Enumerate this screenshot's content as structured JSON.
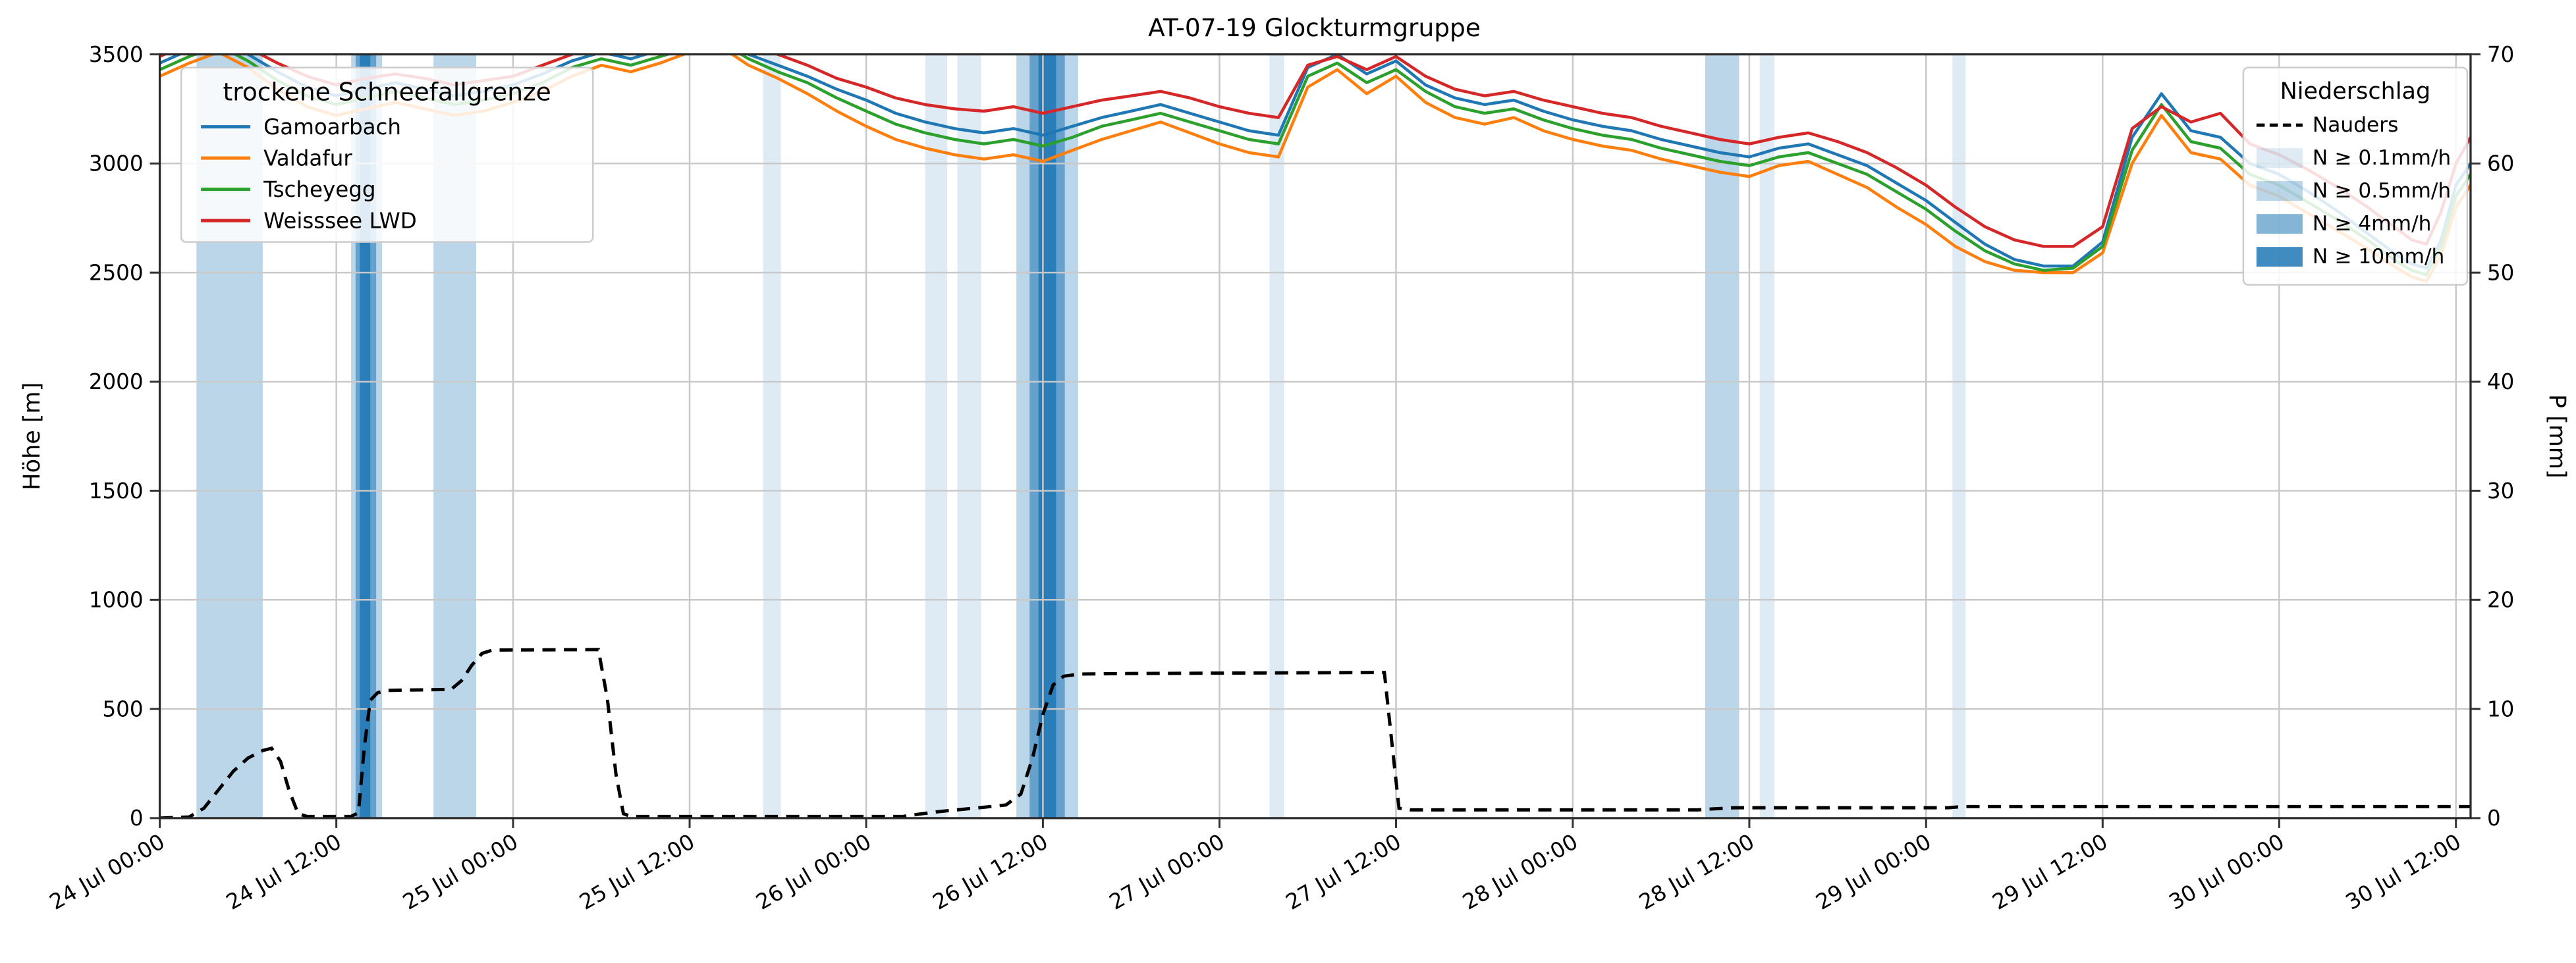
{
  "title": "AT-07-19 Glockturmgruppe",
  "axes": {
    "left": {
      "label": "Höhe [m]",
      "tick_values": [
        0,
        500,
        1000,
        1500,
        2000,
        2500,
        3000,
        3500
      ],
      "range": [
        0,
        3500
      ]
    },
    "right": {
      "label": "P [mm]",
      "tick_values": [
        0,
        10,
        20,
        30,
        40,
        50,
        60,
        70
      ],
      "range": [
        0,
        70
      ]
    },
    "x": {
      "tick_hours": [
        0,
        12,
        24,
        36,
        48,
        60,
        72,
        84,
        96,
        108,
        120,
        132,
        144,
        156
      ],
      "tick_labels": [
        "24 Jul 00:00",
        "24 Jul 12:00",
        "25 Jul 00:00",
        "25 Jul 12:00",
        "26 Jul 00:00",
        "26 Jul 12:00",
        "27 Jul 00:00",
        "27 Jul 12:00",
        "28 Jul 00:00",
        "28 Jul 12:00",
        "29 Jul 00:00",
        "29 Jul 12:00",
        "30 Jul 00:00",
        "30 Jul 12:00"
      ],
      "range_hours": [
        0,
        157
      ]
    }
  },
  "legend_lines": {
    "title": "trockene Schneefallgrenze",
    "entries": [
      {
        "label": "Gamoarbach",
        "color": "#1f77b4"
      },
      {
        "label": "Valdafur",
        "color": "#ff7f0e"
      },
      {
        "label": "Tscheyegg",
        "color": "#2ca02c"
      },
      {
        "label": "Weisssee LWD",
        "color": "#d62728"
      }
    ]
  },
  "legend_precip": {
    "title": "Niederschlag",
    "entries": [
      {
        "label": "Nauders",
        "swatch": "dashed-line",
        "color": "#000000"
      },
      {
        "label": "N ≥ 0.1mm/h",
        "swatch": "patch",
        "class": "0.1"
      },
      {
        "label": "N ≥ 0.5mm/h",
        "swatch": "patch",
        "class": "0.5"
      },
      {
        "label": "N ≥ 4mm/h",
        "swatch": "patch",
        "class": "4"
      },
      {
        "label": "N ≥ 10mm/h",
        "swatch": "patch",
        "class": "10"
      }
    ]
  },
  "chart_data": {
    "type": "line",
    "x_unit": "hours since 24 Jul 00:00",
    "x_hours": [
      0,
      2,
      4,
      6,
      8,
      10,
      12,
      14,
      16,
      18,
      20,
      22,
      24,
      26,
      28,
      30,
      32,
      34,
      36,
      38,
      40,
      42,
      44,
      46,
      48,
      50,
      52,
      54,
      56,
      58,
      60,
      62,
      64,
      66,
      68,
      70,
      72,
      74,
      76,
      78,
      80,
      82,
      84,
      86,
      88,
      90,
      92,
      94,
      96,
      98,
      100,
      102,
      104,
      106,
      108,
      110,
      112,
      114,
      116,
      118,
      120,
      122,
      124,
      126,
      128,
      130,
      132,
      134,
      136,
      138,
      140,
      142,
      144,
      146,
      148,
      150,
      152,
      153,
      154,
      155,
      156,
      157
    ],
    "series": [
      {
        "name": "Gamoarbach",
        "axis": "left",
        "color": "#1f77b4",
        "values": [
          3460,
          3520,
          3560,
          3500,
          3420,
          3350,
          3310,
          3340,
          3370,
          3340,
          3310,
          3330,
          3360,
          3410,
          3470,
          3510,
          3480,
          3520,
          3560,
          3580,
          3500,
          3450,
          3400,
          3340,
          3290,
          3230,
          3190,
          3160,
          3140,
          3160,
          3130,
          3170,
          3210,
          3240,
          3270,
          3230,
          3190,
          3150,
          3130,
          3440,
          3500,
          3410,
          3470,
          3360,
          3300,
          3270,
          3290,
          3240,
          3200,
          3170,
          3150,
          3110,
          3080,
          3050,
          3030,
          3070,
          3090,
          3040,
          2990,
          2910,
          2830,
          2730,
          2630,
          2560,
          2530,
          2530,
          2640,
          3120,
          3320,
          3150,
          3120,
          3000,
          2950,
          2870,
          2780,
          2680,
          2580,
          2540,
          2520,
          2650,
          2900,
          3000
        ]
      },
      {
        "name": "Valdafur",
        "axis": "left",
        "color": "#ff7f0e",
        "values": [
          3400,
          3460,
          3510,
          3440,
          3340,
          3260,
          3220,
          3250,
          3280,
          3250,
          3220,
          3240,
          3280,
          3330,
          3400,
          3450,
          3420,
          3460,
          3510,
          3540,
          3450,
          3390,
          3320,
          3240,
          3170,
          3110,
          3070,
          3040,
          3020,
          3040,
          3010,
          3060,
          3110,
          3150,
          3190,
          3140,
          3090,
          3050,
          3030,
          3350,
          3430,
          3320,
          3400,
          3280,
          3210,
          3180,
          3210,
          3150,
          3110,
          3080,
          3060,
          3020,
          2990,
          2960,
          2940,
          2990,
          3010,
          2950,
          2890,
          2800,
          2720,
          2620,
          2550,
          2510,
          2500,
          2500,
          2590,
          3000,
          3220,
          3050,
          3020,
          2900,
          2850,
          2770,
          2690,
          2610,
          2520,
          2480,
          2460,
          2580,
          2800,
          2900
        ]
      },
      {
        "name": "Tscheyegg",
        "axis": "left",
        "color": "#2ca02c",
        "values": [
          3430,
          3490,
          3540,
          3470,
          3380,
          3310,
          3270,
          3300,
          3330,
          3300,
          3270,
          3290,
          3320,
          3370,
          3440,
          3480,
          3450,
          3490,
          3530,
          3560,
          3480,
          3420,
          3370,
          3300,
          3240,
          3180,
          3140,
          3110,
          3090,
          3110,
          3080,
          3120,
          3170,
          3200,
          3230,
          3190,
          3150,
          3110,
          3090,
          3400,
          3460,
          3370,
          3430,
          3330,
          3260,
          3230,
          3250,
          3200,
          3160,
          3130,
          3110,
          3070,
          3040,
          3010,
          2990,
          3030,
          3050,
          3000,
          2950,
          2870,
          2790,
          2690,
          2600,
          2540,
          2510,
          2520,
          2620,
          3060,
          3270,
          3100,
          3070,
          2950,
          2900,
          2820,
          2740,
          2650,
          2550,
          2510,
          2490,
          2620,
          2850,
          2950
        ]
      },
      {
        "name": "Weisssee LWD",
        "axis": "left",
        "color": "#d62728",
        "values": [
          3490,
          3550,
          3590,
          3530,
          3460,
          3400,
          3360,
          3390,
          3410,
          3390,
          3360,
          3380,
          3400,
          3450,
          3500,
          3540,
          3510,
          3540,
          3580,
          3600,
          3540,
          3500,
          3450,
          3390,
          3350,
          3300,
          3270,
          3250,
          3240,
          3260,
          3230,
          3260,
          3290,
          3310,
          3330,
          3300,
          3260,
          3230,
          3210,
          3450,
          3490,
          3430,
          3490,
          3400,
          3340,
          3310,
          3330,
          3290,
          3260,
          3230,
          3210,
          3170,
          3140,
          3110,
          3090,
          3120,
          3140,
          3100,
          3050,
          2980,
          2900,
          2800,
          2710,
          2650,
          2620,
          2620,
          2710,
          3160,
          3260,
          3190,
          3230,
          3090,
          3040,
          2970,
          2890,
          2800,
          2700,
          2650,
          2630,
          2780,
          3000,
          3120
        ]
      }
    ],
    "precip_line": {
      "name": "Nauders",
      "axis": "right",
      "style": "dashed",
      "color": "#000000",
      "points": [
        [
          0,
          0
        ],
        [
          2,
          0.1
        ],
        [
          3,
          0.9
        ],
        [
          4,
          2.6
        ],
        [
          5,
          4.3
        ],
        [
          6,
          5.5
        ],
        [
          7,
          6.2
        ],
        [
          7.6,
          6.4
        ],
        [
          8.2,
          5.2
        ],
        [
          8.8,
          2.5
        ],
        [
          9.4,
          0.4
        ],
        [
          10,
          0.15
        ],
        [
          13,
          0.15
        ],
        [
          13.5,
          0.5
        ],
        [
          13.9,
          6.5
        ],
        [
          14.3,
          10.8
        ],
        [
          14.8,
          11.5
        ],
        [
          15.5,
          11.7
        ],
        [
          19.8,
          11.8
        ],
        [
          20.5,
          12.6
        ],
        [
          21.2,
          14.0
        ],
        [
          21.9,
          15.1
        ],
        [
          22.6,
          15.4
        ],
        [
          29.8,
          15.45
        ],
        [
          30.4,
          11.0
        ],
        [
          31.0,
          4.0
        ],
        [
          31.5,
          0.4
        ],
        [
          32,
          0.15
        ],
        [
          50.5,
          0.15
        ],
        [
          51.5,
          0.35
        ],
        [
          53,
          0.6
        ],
        [
          54.5,
          0.8
        ],
        [
          56,
          1.0
        ],
        [
          57.5,
          1.2
        ],
        [
          58.5,
          2.2
        ],
        [
          59.3,
          5.5
        ],
        [
          60,
          9.5
        ],
        [
          60.7,
          12.2
        ],
        [
          61.4,
          13.0
        ],
        [
          62.5,
          13.2
        ],
        [
          65,
          13.25
        ],
        [
          75,
          13.3
        ],
        [
          83.2,
          13.35
        ],
        [
          83.7,
          7.0
        ],
        [
          84.2,
          0.9
        ],
        [
          85,
          0.75
        ],
        [
          104.5,
          0.75
        ],
        [
          105.5,
          0.85
        ],
        [
          107,
          0.95
        ],
        [
          121.5,
          0.95
        ],
        [
          122.5,
          1.05
        ],
        [
          150,
          1.05
        ],
        [
          157,
          1.05
        ]
      ]
    },
    "precip_bands": [
      [
        2.5,
        7.0,
        "0.5"
      ],
      [
        13.0,
        15.1,
        "0.5"
      ],
      [
        13.3,
        14.7,
        "4"
      ],
      [
        13.6,
        14.3,
        "10"
      ],
      [
        18.6,
        21.5,
        "0.5"
      ],
      [
        41.0,
        42.2,
        "0.1"
      ],
      [
        52.0,
        53.5,
        "0.1"
      ],
      [
        54.2,
        55.8,
        "0.1"
      ],
      [
        58.2,
        62.4,
        "0.5"
      ],
      [
        59.1,
        61.5,
        "4"
      ],
      [
        59.7,
        60.9,
        "10"
      ],
      [
        75.4,
        76.4,
        "0.1"
      ],
      [
        105.0,
        107.3,
        "0.5"
      ],
      [
        108.7,
        109.7,
        "0.1"
      ],
      [
        121.8,
        122.7,
        "0.1"
      ]
    ],
    "band_colors": {
      "0.1": "rgba(31,119,180,0.15)",
      "0.5": "rgba(31,119,180,0.30)",
      "4": "rgba(31,119,180,0.55)",
      "10": "rgba(31,119,180,0.85)"
    },
    "grid": true,
    "grid_color": "#c9c9c9"
  }
}
